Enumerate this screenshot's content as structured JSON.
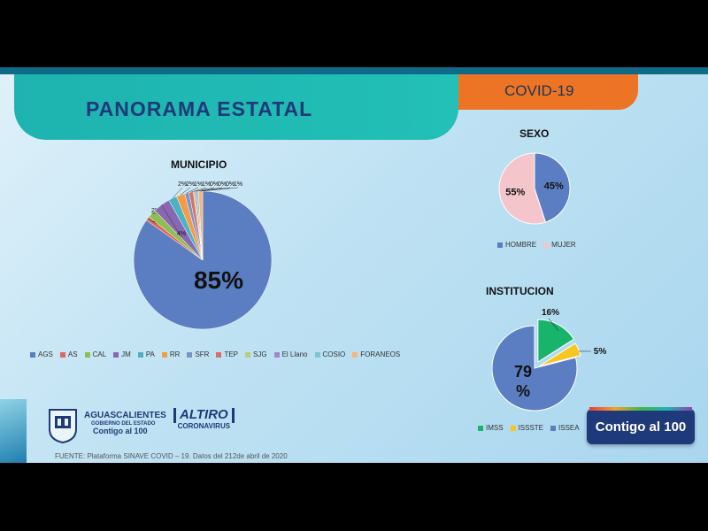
{
  "header": {
    "title": "PANORAMA ESTATAL",
    "tag": "COVID-19"
  },
  "footer": {
    "source": "FUENTE: Plataforma SINAVE COVID – 19. Datos del 212de abril de 2020",
    "org_line1": "AGUASCALIENTES",
    "org_line2": "GOBIERNO DEL ESTADO",
    "org_line3": "Contigo al 100",
    "campaign_line1": "ALTIRO",
    "campaign_line2": "CORONAVIRUS",
    "badge_text": "Contigo al 100"
  },
  "colors": {
    "blue": "#5b7ec2",
    "pink": "#f4c6cc",
    "green": "#18b46b",
    "yellow": "#f7c61f",
    "orange": "#ec7424",
    "teal": "#1eb3b0"
  },
  "chart_data": [
    {
      "id": "municipio",
      "type": "pie",
      "title": "MUNICIPIO",
      "slices": [
        {
          "name": "AGS",
          "value": 85,
          "label": "85%",
          "color": "#5b7ec2"
        },
        {
          "name": "AS",
          "value": 1,
          "label": "1%",
          "color": "#e0675c"
        },
        {
          "name": "CAL",
          "value": 2,
          "label": "2%",
          "color": "#8fbf54"
        },
        {
          "name": "JM",
          "value": 4,
          "label": "4%",
          "color": "#8a67b3"
        },
        {
          "name": "PA",
          "value": 2,
          "label": "2%",
          "color": "#49b3c4"
        },
        {
          "name": "RR",
          "value": 2,
          "label": "2%",
          "color": "#f29c46"
        },
        {
          "name": "SFR",
          "value": 1,
          "label": "1%",
          "color": "#7b93c6"
        },
        {
          "name": "TEP",
          "value": 1,
          "label": "1%",
          "color": "#d7706a"
        },
        {
          "name": "SJG",
          "value": 0.4,
          "label": "0%",
          "color": "#b5cf7d"
        },
        {
          "name": "El Llano",
          "value": 0.4,
          "label": "0%",
          "color": "#a487c7"
        },
        {
          "name": "COSIO",
          "value": 0.4,
          "label": "0%",
          "color": "#7cc6d2"
        },
        {
          "name": "FORANEOS",
          "value": 1,
          "label": "1%",
          "color": "#f6b47a"
        }
      ],
      "legend": [
        "AGS",
        "AS",
        "CAL",
        "JM",
        "PA",
        "RR",
        "SFR",
        "TEP",
        "SJG",
        "El Llano",
        "COSIO",
        "FORANEOS"
      ]
    },
    {
      "id": "sexo",
      "type": "pie",
      "title": "SEXO",
      "slices": [
        {
          "name": "HOMBRE",
          "value": 45,
          "label": "45%",
          "color": "#5b7ec2"
        },
        {
          "name": "MUJER",
          "value": 55,
          "label": "55%",
          "color": "#f4c6cc"
        }
      ],
      "legend": [
        "HOMBRE",
        "MUJER"
      ]
    },
    {
      "id": "institucion",
      "type": "pie",
      "title": "INSTITUCION",
      "slices": [
        {
          "name": "IMSS",
          "value": 16,
          "label": "16%",
          "color": "#18b46b"
        },
        {
          "name": "ISSSTE",
          "value": 5,
          "label": "5%",
          "color": "#f7c61f"
        },
        {
          "name": "ISSEA",
          "value": 79,
          "label": "79 %",
          "color": "#5b7ec2"
        }
      ],
      "legend": [
        "IMSS",
        "ISSSTE",
        "ISSEA"
      ]
    }
  ]
}
